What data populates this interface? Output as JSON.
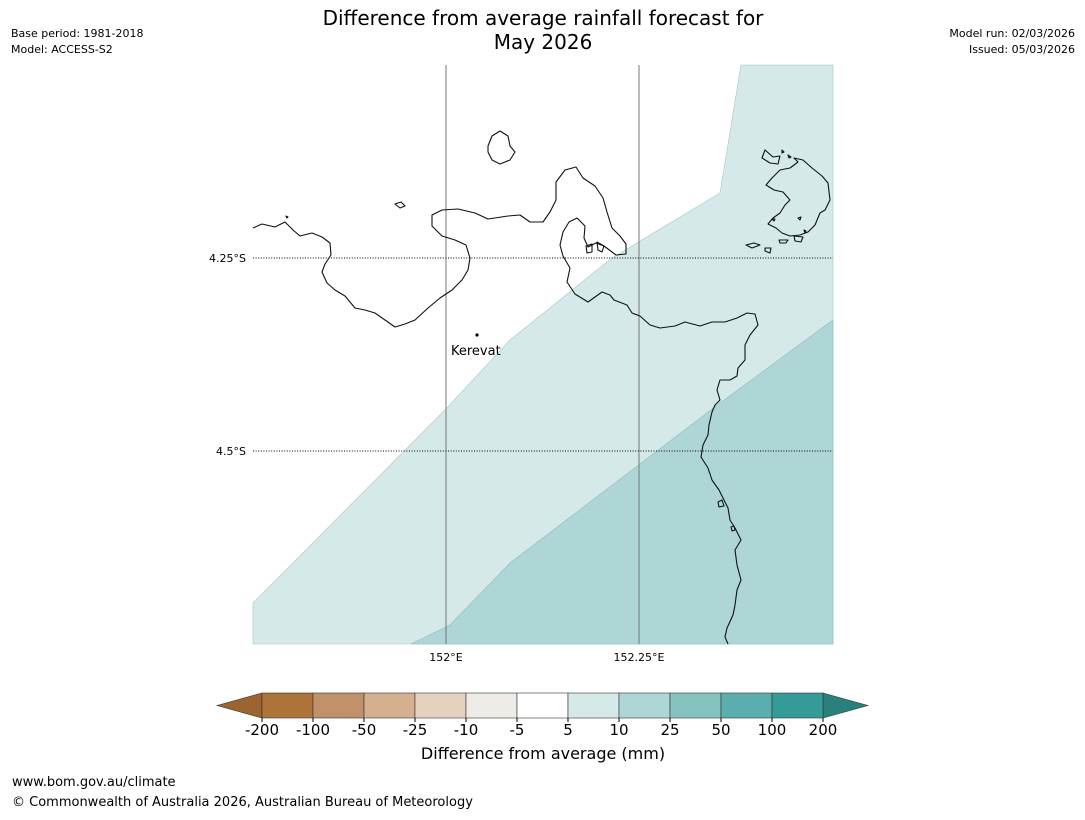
{
  "header": {
    "title_line1": "Difference from average rainfall forecast for",
    "title_line2": "May 2026",
    "base_period": "Base period: 1981-2018",
    "model": "Model: ACCESS-S2",
    "model_run": "Model run: 02/03/2026",
    "issued": "Issued: 05/03/2026"
  },
  "map": {
    "lon_labels": [
      "152°E",
      "152.25°E"
    ],
    "lat_labels": [
      "4.25°S",
      "4.5°S"
    ],
    "place": {
      "name": "Kerevat"
    },
    "zone_colors": {
      "5_to_10": "#d5e9e9",
      "10_to_25": "#aed6d6"
    }
  },
  "colorbar": {
    "title": "Difference from average (mm)",
    "ticks": [
      "-200",
      "-100",
      "-50",
      "-25",
      "-10",
      "-5",
      "5",
      "10",
      "25",
      "50",
      "100",
      "200"
    ],
    "colors": [
      "#ad7339",
      "#c1916a",
      "#d4b08f",
      "#e5d1bf",
      "#efebe7",
      "#ffffff",
      "#d5e9e9",
      "#aed6d6",
      "#84c3c0",
      "#5aaead",
      "#339c99"
    ],
    "under_color": "#9c6430",
    "over_color": "#2a807c"
  },
  "footer": {
    "url": "www.bom.gov.au/climate",
    "copyright": "© Commonwealth of Australia 2026, Australian Bureau of Meteorology"
  }
}
